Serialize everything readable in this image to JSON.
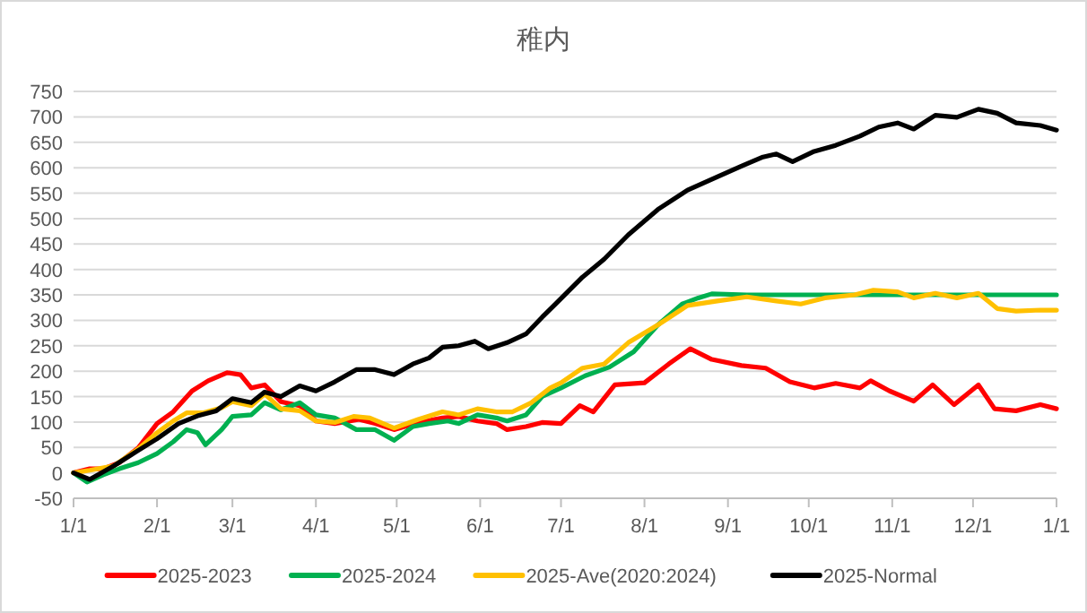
{
  "chart_data": {
    "type": "line",
    "title": "稚内",
    "xlim": [
      "2025-01-01",
      "2026-01-01"
    ],
    "xticks": [
      {
        "value": "2025-01-01",
        "label": "1/1"
      },
      {
        "value": "2025-02-01",
        "label": "2/1"
      },
      {
        "value": "2025-03-01",
        "label": "3/1"
      },
      {
        "value": "2025-04-01",
        "label": "4/1"
      },
      {
        "value": "2025-05-01",
        "label": "5/1"
      },
      {
        "value": "2025-06-01",
        "label": "6/1"
      },
      {
        "value": "2025-07-01",
        "label": "7/1"
      },
      {
        "value": "2025-08-01",
        "label": "8/1"
      },
      {
        "value": "2025-09-01",
        "label": "9/1"
      },
      {
        "value": "2025-10-01",
        "label": "10/1"
      },
      {
        "value": "2025-11-01",
        "label": "11/1"
      },
      {
        "value": "2025-12-01",
        "label": "12/1"
      },
      {
        "value": "2026-01-01",
        "label": "1/1"
      }
    ],
    "ylim": [
      -50,
      750
    ],
    "yticks": [
      -50,
      0,
      50,
      100,
      150,
      200,
      250,
      300,
      350,
      400,
      450,
      500,
      550,
      600,
      650,
      700,
      750
    ],
    "grid": "y",
    "legend": "bottom",
    "marker": "none",
    "line_style": "solid",
    "series": [
      {
        "name": "2025-2023",
        "color": "#ff0000",
        "x": [
          "2025-01-01",
          "2025-01-07",
          "2025-01-12",
          "2025-01-18",
          "2025-01-25",
          "2025-02-01",
          "2025-02-07",
          "2025-02-14",
          "2025-02-20",
          "2025-02-27",
          "2025-03-04",
          "2025-03-08",
          "2025-03-13",
          "2025-03-19",
          "2025-03-26",
          "2025-04-01",
          "2025-04-08",
          "2025-04-17",
          "2025-04-23",
          "2025-04-30",
          "2025-05-09",
          "2025-05-18",
          "2025-05-24",
          "2025-05-31",
          "2025-06-07",
          "2025-06-11",
          "2025-06-18",
          "2025-06-24",
          "2025-07-01",
          "2025-07-08",
          "2025-07-13",
          "2025-07-21",
          "2025-08-01",
          "2025-08-10",
          "2025-08-18",
          "2025-08-26",
          "2025-09-06",
          "2025-09-15",
          "2025-09-24",
          "2025-10-03",
          "2025-10-11",
          "2025-10-20",
          "2025-10-24",
          "2025-10-31",
          "2025-11-09",
          "2025-11-16",
          "2025-11-24",
          "2025-12-03",
          "2025-12-09",
          "2025-12-17",
          "2025-12-26",
          "2026-01-01"
        ],
        "values": [
          0,
          8,
          8,
          20,
          49,
          97,
          120,
          161,
          181,
          197,
          193,
          167,
          173,
          140,
          132,
          102,
          97,
          105,
          97,
          85,
          99,
          108,
          111,
          102,
          97,
          85,
          91,
          99,
          97,
          132,
          120,
          173,
          177,
          214,
          244,
          223,
          211,
          206,
          179,
          167,
          176,
          167,
          181,
          161,
          141,
          173,
          134,
          173,
          126,
          122,
          134,
          126
        ]
      },
      {
        "name": "2025-2024",
        "color": "#00b050",
        "x": [
          "2025-01-01",
          "2025-01-06",
          "2025-01-12",
          "2025-01-18",
          "2025-01-25",
          "2025-02-01",
          "2025-02-07",
          "2025-02-12",
          "2025-02-16",
          "2025-02-19",
          "2025-02-25",
          "2025-03-01",
          "2025-03-08",
          "2025-03-13",
          "2025-03-19",
          "2025-03-26",
          "2025-04-01",
          "2025-04-08",
          "2025-04-16",
          "2025-04-23",
          "2025-04-30",
          "2025-05-07",
          "2025-05-13",
          "2025-05-20",
          "2025-05-24",
          "2025-05-31",
          "2025-06-07",
          "2025-06-11",
          "2025-06-18",
          "2025-06-24",
          "2025-07-01",
          "2025-07-10",
          "2025-07-19",
          "2025-07-28",
          "2025-08-06",
          "2025-08-15",
          "2025-08-21",
          "2025-08-26",
          "2025-09-08",
          "2025-09-28",
          "2025-10-18",
          "2025-11-07",
          "2025-11-27",
          "2025-12-17",
          "2026-01-01"
        ],
        "values": [
          0,
          -18,
          -4,
          8,
          20,
          38,
          61,
          85,
          79,
          55,
          85,
          111,
          114,
          138,
          124,
          138,
          114,
          108,
          85,
          85,
          64,
          91,
          97,
          102,
          97,
          114,
          108,
          102,
          114,
          150,
          167,
          191,
          208,
          238,
          291,
          332,
          344,
          352,
          350,
          350,
          350,
          350,
          350,
          350,
          350
        ]
      },
      {
        "name": "2025-Ave(2020:2024)",
        "color": "#ffc000",
        "x": [
          "2025-01-01",
          "2025-01-07",
          "2025-01-16",
          "2025-01-25",
          "2025-02-01",
          "2025-02-07",
          "2025-02-12",
          "2025-02-18",
          "2025-02-25",
          "2025-03-01",
          "2025-03-08",
          "2025-03-13",
          "2025-03-19",
          "2025-03-26",
          "2025-04-01",
          "2025-04-08",
          "2025-04-15",
          "2025-04-21",
          "2025-04-30",
          "2025-05-09",
          "2025-05-18",
          "2025-05-24",
          "2025-05-31",
          "2025-06-07",
          "2025-06-13",
          "2025-06-20",
          "2025-06-27",
          "2025-07-01",
          "2025-07-09",
          "2025-07-17",
          "2025-07-26",
          "2025-08-06",
          "2025-08-17",
          "2025-08-28",
          "2025-09-08",
          "2025-09-19",
          "2025-09-28",
          "2025-10-07",
          "2025-10-18",
          "2025-10-25",
          "2025-11-03",
          "2025-11-09",
          "2025-11-17",
          "2025-11-25",
          "2025-12-03",
          "2025-12-10",
          "2025-12-17",
          "2025-12-26",
          "2026-01-01"
        ],
        "values": [
          0,
          5,
          14,
          47,
          79,
          102,
          118,
          118,
          128,
          140,
          132,
          155,
          126,
          122,
          102,
          99,
          111,
          108,
          88,
          105,
          120,
          114,
          126,
          120,
          120,
          138,
          167,
          177,
          206,
          214,
          256,
          291,
          329,
          338,
          346,
          338,
          332,
          344,
          350,
          359,
          356,
          344,
          353,
          344,
          353,
          323,
          318,
          320,
          320
        ]
      },
      {
        "name": "2025-Normal",
        "color": "#000000",
        "x": [
          "2025-01-01",
          "2025-01-07",
          "2025-01-16",
          "2025-01-25",
          "2025-02-01",
          "2025-02-09",
          "2025-02-16",
          "2025-02-23",
          "2025-03-01",
          "2025-03-08",
          "2025-03-13",
          "2025-03-19",
          "2025-03-26",
          "2025-04-01",
          "2025-04-08",
          "2025-04-16",
          "2025-04-23",
          "2025-04-30",
          "2025-05-07",
          "2025-05-13",
          "2025-05-18",
          "2025-05-24",
          "2025-05-30",
          "2025-06-04",
          "2025-06-11",
          "2025-06-18",
          "2025-06-24",
          "2025-06-29",
          "2025-07-09",
          "2025-07-17",
          "2025-07-26",
          "2025-08-06",
          "2025-08-17",
          "2025-08-28",
          "2025-09-06",
          "2025-09-14",
          "2025-09-19",
          "2025-09-25",
          "2025-10-03",
          "2025-10-11",
          "2025-10-20",
          "2025-10-27",
          "2025-11-03",
          "2025-11-09",
          "2025-11-17",
          "2025-11-25",
          "2025-12-03",
          "2025-12-10",
          "2025-12-17",
          "2025-12-26",
          "2026-01-01"
        ],
        "values": [
          0,
          -13,
          14,
          44,
          67,
          97,
          112,
          122,
          146,
          138,
          159,
          150,
          171,
          161,
          179,
          203,
          203,
          193,
          214,
          226,
          247,
          250,
          259,
          244,
          256,
          273,
          306,
          332,
          385,
          420,
          468,
          518,
          556,
          582,
          603,
          621,
          627,
          612,
          632,
          644,
          662,
          680,
          688,
          676,
          703,
          699,
          715,
          707,
          688,
          683,
          674
        ]
      }
    ]
  }
}
